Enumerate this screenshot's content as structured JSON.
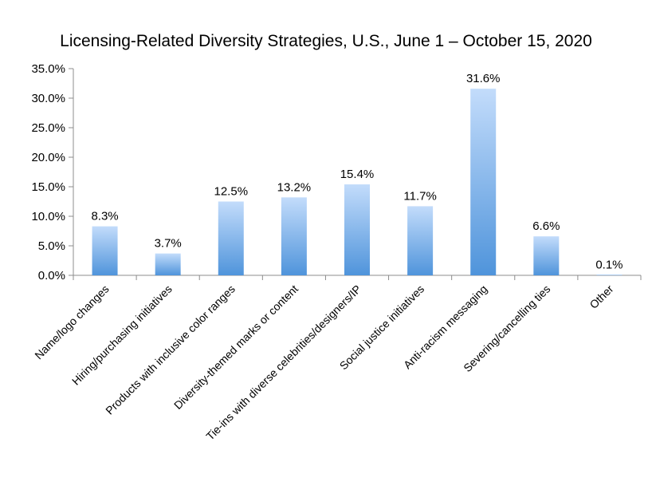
{
  "chart_data": {
    "type": "bar",
    "title": "Licensing-Related Diversity Strategies, U.S., June 1 – October 15, 2020",
    "xlabel": "",
    "ylabel": "",
    "categories": [
      "Name/logo changes",
      "Hiring/purchasing initiatives",
      "Products with inclusive color ranges",
      "Diversity-themed marks or content",
      "Tie-ins with diverse celebrities/designers/IP",
      "Social justice initiatives",
      "Anti-racism messaging",
      "Severing/cancelling ties",
      "Other"
    ],
    "values": [
      8.3,
      3.7,
      12.5,
      13.2,
      15.4,
      11.7,
      31.6,
      6.6,
      0.1
    ],
    "data_labels": [
      "8.3%",
      "3.7%",
      "12.5%",
      "13.2%",
      "15.4%",
      "11.7%",
      "31.6%",
      "6.6%",
      "0.1%"
    ],
    "ylim": [
      0,
      35
    ],
    "yticks": [
      0,
      5,
      10,
      15,
      20,
      25,
      30,
      35
    ],
    "ytick_labels": [
      "0.0%",
      "5.0%",
      "10.0%",
      "15.0%",
      "20.0%",
      "25.0%",
      "30.0%",
      "35.0%"
    ],
    "grid": false,
    "legend": "none",
    "colors": {
      "bar_top": "#c3dcfb",
      "bar_bottom": "#4f94db",
      "axis": "#8c8c8c",
      "text": "#000000"
    }
  }
}
